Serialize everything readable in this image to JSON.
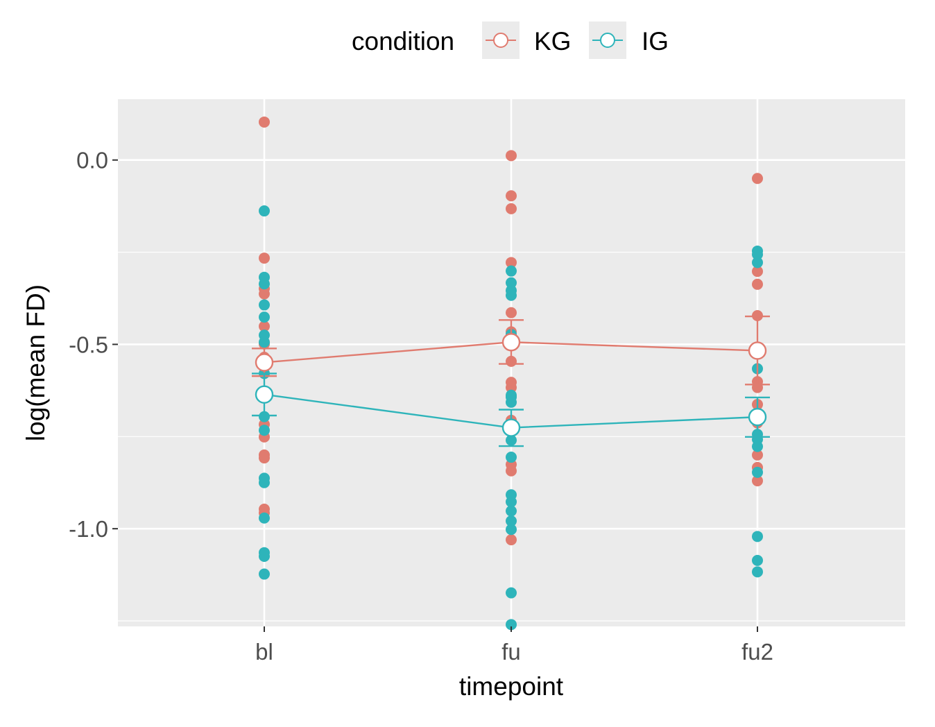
{
  "chart_data": {
    "type": "scatter",
    "xlabel": "timepoint",
    "ylabel": "log(mean FD)",
    "categories": [
      "bl",
      "fu",
      "fu2"
    ],
    "ylim": [
      -1.265,
      0.165
    ],
    "y_major_ticks": [
      0.0,
      -0.5,
      -1.0
    ],
    "y_tick_labels": [
      "0.0",
      "-0.5",
      "-1.0"
    ],
    "y_minor_ticks": [
      0.25,
      -0.25,
      -0.75,
      -1.25
    ],
    "grid": true,
    "legend": {
      "title": "condition",
      "position": "top",
      "entries": [
        "KG",
        "IG"
      ]
    },
    "series": [
      {
        "name": "KG",
        "color": "#E07B6F",
        "means": [
          -0.549,
          -0.494,
          -0.517
        ],
        "error_low": [
          -0.586,
          -0.553,
          -0.609
        ],
        "error_high": [
          -0.511,
          -0.434,
          -0.424
        ],
        "points": [
          [
            0.103,
            -0.266,
            -0.349,
            -0.363,
            -0.451,
            -0.499,
            -0.535,
            -0.717,
            -0.751,
            -0.8,
            -0.808,
            -0.947,
            -0.957
          ],
          [
            0.012,
            -0.097,
            -0.132,
            -0.278,
            -0.414,
            -0.466,
            -0.546,
            -0.603,
            -0.617,
            -0.706,
            -0.826,
            -0.843,
            -1.03
          ],
          [
            -0.05,
            -0.302,
            -0.337,
            -0.422,
            -0.601,
            -0.617,
            -0.663,
            -0.713,
            -0.8,
            -0.834,
            -0.87
          ]
        ]
      },
      {
        "name": "IG",
        "color": "#2EB4BA",
        "means": [
          -0.636,
          -0.726,
          -0.697
        ],
        "error_low": [
          -0.693,
          -0.776,
          -0.751
        ],
        "error_high": [
          -0.579,
          -0.677,
          -0.644
        ],
        "points": [
          [
            -0.138,
            -0.318,
            -0.336,
            -0.393,
            -0.426,
            -0.475,
            -0.494,
            -0.579,
            -0.635,
            -0.696,
            -0.733,
            -0.863,
            -0.875,
            -0.971,
            -1.065,
            -1.075,
            -1.123
          ],
          [
            -0.301,
            -0.333,
            -0.354,
            -0.367,
            -0.473,
            -0.638,
            -0.643,
            -0.657,
            -0.726,
            -0.76,
            -0.806,
            -0.908,
            -0.927,
            -0.952,
            -0.979,
            -1.002,
            -1.174,
            -1.26
          ],
          [
            -0.247,
            -0.256,
            -0.278,
            -0.566,
            -0.693,
            -0.744,
            -0.758,
            -0.777,
            -0.847,
            -1.021,
            -1.086,
            -1.117
          ]
        ]
      }
    ]
  }
}
